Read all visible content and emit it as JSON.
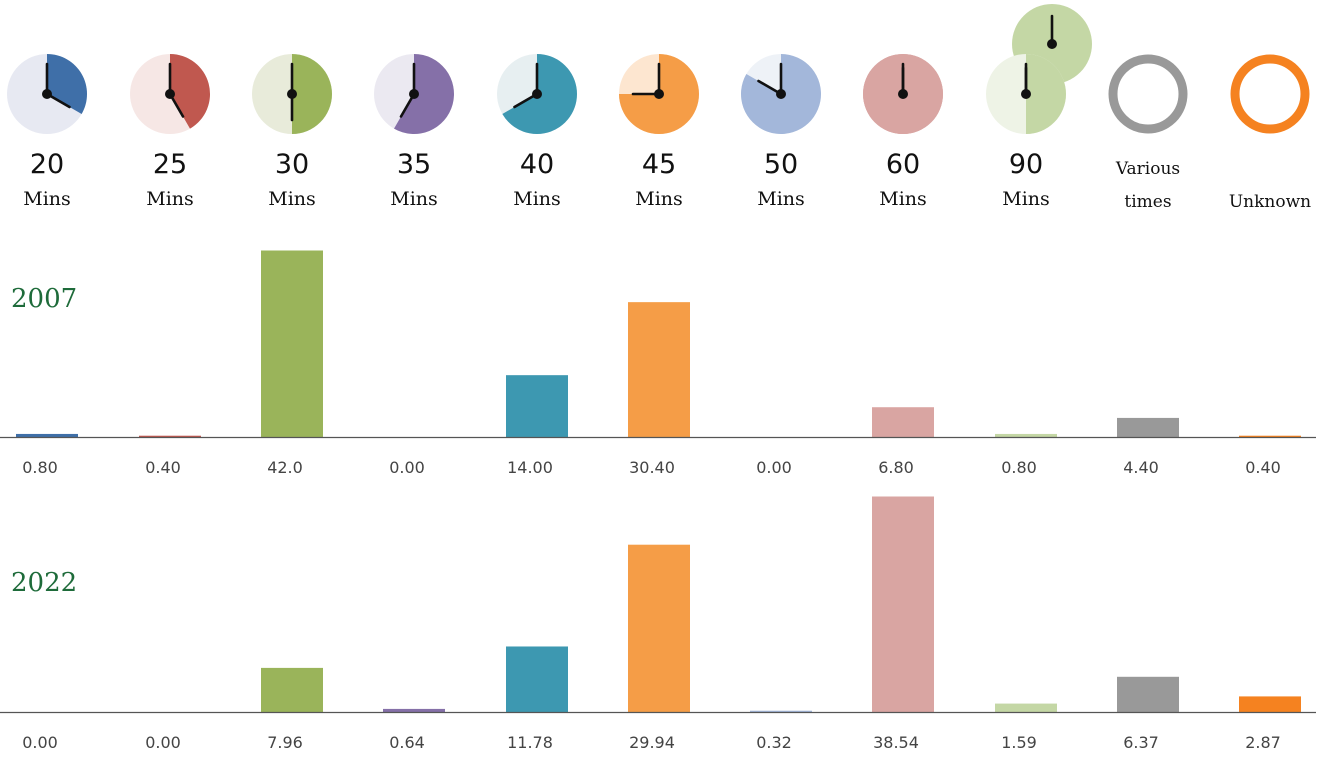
{
  "chart_data": [
    {
      "type": "bar",
      "title": "2007",
      "categories": [
        "20 Mins",
        "25 Mins",
        "30 Mins",
        "35 Mins",
        "40 Mins",
        "45 Mins",
        "50 Mins",
        "60 Mins",
        "90 Mins",
        "Various times",
        "Unknown"
      ],
      "values": [
        0.8,
        0.4,
        42.0,
        0.0,
        14.0,
        30.4,
        0.0,
        6.8,
        0.8,
        4.4,
        0.4
      ],
      "value_labels": [
        "0.80",
        "0.40",
        "42.0",
        "0.00",
        "14.00",
        "30.40",
        "0.00",
        "6.80",
        "0.80",
        "4.40",
        "0.40"
      ],
      "xlabel": "",
      "ylabel": "",
      "grid": false
    },
    {
      "type": "bar",
      "title": "2022",
      "categories": [
        "20 Mins",
        "25 Mins",
        "30 Mins",
        "35 Mins",
        "40 Mins",
        "45 Mins",
        "50 Mins",
        "60 Mins",
        "90 Mins",
        "Various times",
        "Unknown"
      ],
      "values": [
        0.0,
        0.0,
        7.96,
        0.64,
        11.78,
        29.94,
        0.32,
        38.54,
        1.59,
        6.37,
        2.87
      ],
      "value_labels": [
        "0.00",
        "0.00",
        "7.96",
        "0.64",
        "11.78",
        "29.94",
        "0.32",
        "38.54",
        "1.59",
        "6.37",
        "2.87"
      ],
      "xlabel": "",
      "ylabel": "",
      "grid": false
    }
  ],
  "legend": [
    {
      "line1": "20",
      "line2": "Mins",
      "fraction": 0.3333,
      "color": "#3f6fa8",
      "light": "#e7e9f2",
      "icon": "clock-20-icon"
    },
    {
      "line1": "25",
      "line2": "Mins",
      "fraction": 0.4167,
      "color": "#c0584f",
      "light": "#f6e7e5",
      "icon": "clock-25-icon"
    },
    {
      "line1": "30",
      "line2": "Mins",
      "fraction": 0.5,
      "color": "#9ab45a",
      "light": "#e8ebda",
      "icon": "clock-30-icon"
    },
    {
      "line1": "35",
      "line2": "Mins",
      "fraction": 0.5833,
      "color": "#8570a8",
      "light": "#ebe9f1",
      "icon": "clock-35-icon"
    },
    {
      "line1": "40",
      "line2": "Mins",
      "fraction": 0.6667,
      "color": "#3d98b1",
      "light": "#e7eff1",
      "icon": "clock-40-icon"
    },
    {
      "line1": "45",
      "line2": "Mins",
      "fraction": 0.75,
      "color": "#f59d47",
      "light": "#fde6d0",
      "icon": "clock-45-icon"
    },
    {
      "line1": "50",
      "line2": "Mins",
      "fraction": 0.8333,
      "color": "#a3b7da",
      "light": "#eef2f7",
      "icon": "clock-50-icon"
    },
    {
      "line1": "60",
      "line2": "Mins",
      "fraction": 1.0,
      "color": "#d9a5a2",
      "light": "#d9a5a2",
      "icon": "clock-60-icon"
    },
    {
      "line1": "90",
      "line2": "Mins",
      "fraction": 1.5,
      "color": "#c4d7a5",
      "light": "#eef3e6",
      "icon": "clock-90-icon"
    },
    {
      "line1": "Various",
      "line2": "times",
      "fraction": null,
      "color": "#999999",
      "light": "#ffffff",
      "icon": "ring-various-icon"
    },
    {
      "line1": "",
      "line2": "Unknown",
      "fraction": null,
      "color": "#f58220",
      "light": "#ffffff",
      "icon": "ring-unknown-icon"
    }
  ],
  "colors": {
    "year_label": "#1e6b3a",
    "baseline": "#555555",
    "hand": "#111111"
  }
}
